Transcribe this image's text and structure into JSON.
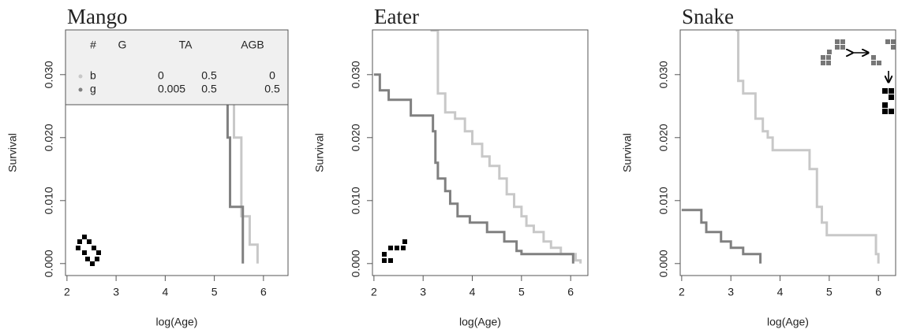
{
  "chart_data": [
    {
      "type": "step",
      "title": "Mango",
      "xlabel": "log(Age)",
      "ylabel": "Survival",
      "xlim": [
        1.97,
        6.5
      ],
      "ylim": [
        -0.0019,
        0.0371
      ],
      "xticks": [
        2,
        3,
        4,
        5,
        6
      ],
      "yticks": [
        {
          "value": 0,
          "label": "0.000"
        },
        {
          "value": 0.01,
          "label": "0.010"
        },
        {
          "value": 0.02,
          "label": "0.020"
        },
        {
          "value": 0.03,
          "label": "0.030"
        }
      ],
      "series": [
        {
          "name": "b",
          "color": "#c8c8c8",
          "x": [
            5.33,
            5.4,
            5.55,
            5.72,
            5.88
          ],
          "values": [
            0.037,
            0.02,
            0.0075,
            0.003,
            0
          ]
        },
        {
          "name": "g",
          "color": "#808080",
          "x": [
            5.25,
            5.27,
            5.32,
            5.58
          ],
          "values": [
            0.037,
            0.02,
            0.009,
            0
          ]
        }
      ],
      "legend_table": {
        "columns": [
          "#",
          "G",
          "TA",
          "AGB"
        ],
        "rows": [
          [
            0,
            0.5,
            0
          ],
          [
            0.005,
            0.5,
            0.5
          ]
        ]
      }
    },
    {
      "type": "step",
      "title": "Eater",
      "xlabel": "log(Age)",
      "ylabel": "Survival",
      "xlim": [
        1.97,
        6.35
      ],
      "ylim": [
        -0.0019,
        0.0371
      ],
      "xticks": [
        2,
        3,
        4,
        5,
        6
      ],
      "yticks": [
        {
          "value": 0,
          "label": "0.000"
        },
        {
          "value": 0.01,
          "label": "0.010"
        },
        {
          "value": 0.02,
          "label": "0.020"
        },
        {
          "value": 0.03,
          "label": "0.030"
        }
      ],
      "series": [
        {
          "color": "#c8c8c8",
          "x": [
            3.15,
            3.3,
            3.45,
            3.65,
            3.85,
            4.0,
            4.2,
            4.35,
            4.55,
            4.7,
            4.85,
            5.0,
            5.1,
            5.25,
            5.45,
            5.6,
            5.8,
            6.1,
            6.2
          ],
          "values": [
            0.037,
            0.027,
            0.024,
            0.023,
            0.021,
            0.019,
            0.017,
            0.0155,
            0.0135,
            0.011,
            0.009,
            0.0075,
            0.006,
            0.005,
            0.0035,
            0.0025,
            0.0015,
            0.0005,
            0
          ]
        },
        {
          "color": "#808080",
          "x": [
            2.0,
            2.12,
            2.3,
            2.75,
            3.2,
            3.25,
            3.3,
            3.45,
            3.55,
            3.7,
            3.95,
            4.3,
            4.65,
            4.9,
            5.0,
            6.05
          ],
          "values": [
            0.03,
            0.0275,
            0.026,
            0.0235,
            0.021,
            0.016,
            0.0135,
            0.0115,
            0.0095,
            0.0075,
            0.0065,
            0.005,
            0.0035,
            0.002,
            0.0015,
            0
          ]
        }
      ]
    },
    {
      "type": "step",
      "title": "Snake",
      "xlabel": "log(Age)",
      "ylabel": "Survival",
      "xlim": [
        1.97,
        6.35
      ],
      "ylim": [
        -0.0019,
        0.0371
      ],
      "xticks": [
        2,
        3,
        4,
        5,
        6
      ],
      "yticks": [
        {
          "value": 0,
          "label": "0.000"
        },
        {
          "value": 0.01,
          "label": "0.010"
        },
        {
          "value": 0.02,
          "label": "0.020"
        },
        {
          "value": 0.03,
          "label": "0.030"
        }
      ],
      "series": [
        {
          "color": "#c8c8c8",
          "x": [
            3.1,
            3.15,
            3.25,
            3.5,
            3.65,
            3.75,
            3.85,
            4.6,
            4.75,
            4.85,
            4.95,
            5.95,
            6.0
          ],
          "values": [
            0.037,
            0.029,
            0.027,
            0.023,
            0.021,
            0.02,
            0.018,
            0.015,
            0.009,
            0.0065,
            0.0045,
            0.0015,
            0
          ]
        },
        {
          "color": "#808080",
          "x": [
            2.0,
            2.4,
            2.5,
            2.8,
            3.0,
            3.25,
            3.6
          ],
          "values": [
            0.0085,
            0.0065,
            0.005,
            0.0035,
            0.0025,
            0.0015,
            0
          ]
        }
      ]
    }
  ]
}
